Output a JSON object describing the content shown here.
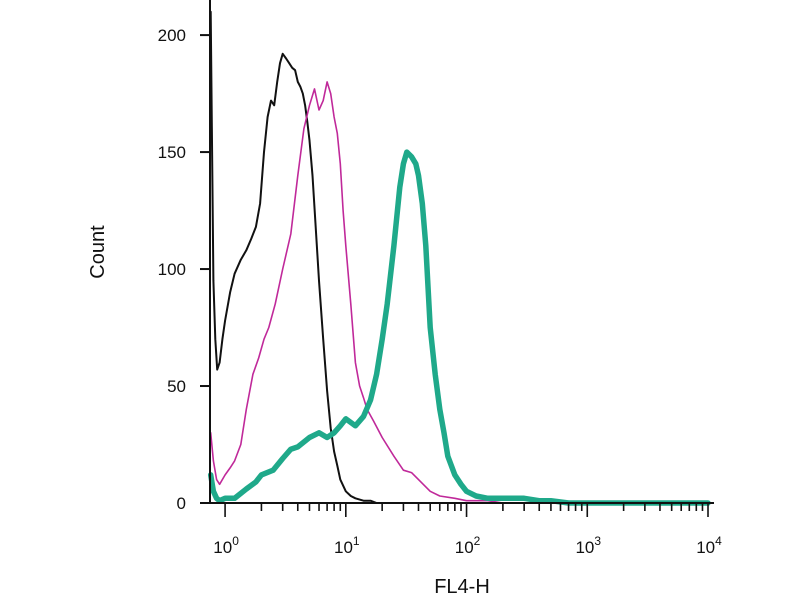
{
  "chart_data": {
    "type": "line",
    "title": "",
    "xlabel": "FL4-H",
    "ylabel": "Count",
    "x_scale": "log",
    "xlim": [
      0.75,
      11000
    ],
    "ylim": [
      0,
      215
    ],
    "grid": false,
    "legend": "none",
    "y_ticks": [
      0,
      50,
      100,
      150,
      200
    ],
    "y_tick_labels": [
      "0",
      "50",
      "100",
      "150",
      "200"
    ],
    "x_ticks": [
      1,
      10,
      100,
      1000,
      10000
    ],
    "x_tick_labels": [
      {
        "base": "10",
        "exp": "0"
      },
      {
        "base": "10",
        "exp": "1"
      },
      {
        "base": "10",
        "exp": "2"
      },
      {
        "base": "10",
        "exp": "3"
      },
      {
        "base": "10",
        "exp": "4"
      }
    ],
    "series": [
      {
        "color": "#111111",
        "stroke_width": 2,
        "x": [
          0.76,
          0.78,
          0.8,
          0.83,
          0.86,
          0.9,
          0.95,
          1.0,
          1.1,
          1.2,
          1.35,
          1.5,
          1.65,
          1.8,
          1.95,
          2.1,
          2.25,
          2.4,
          2.55,
          2.7,
          2.85,
          3.0,
          3.2,
          3.4,
          3.6,
          3.8,
          4.0,
          4.2,
          4.4,
          4.6,
          4.8,
          5.0,
          5.3,
          5.6,
          6.0,
          6.5,
          7.0,
          7.5,
          8.0,
          8.5,
          9.0,
          10.0,
          11.0,
          12.0,
          14.0,
          16.0,
          18.0,
          20.0,
          25.0,
          30.0,
          40.0
        ],
        "y": [
          210,
          150,
          95,
          70,
          57,
          60,
          70,
          78,
          90,
          98,
          104,
          108,
          113,
          118,
          128,
          150,
          165,
          172,
          170,
          180,
          188,
          192,
          190,
          188,
          186,
          185,
          180,
          178,
          175,
          170,
          163,
          155,
          140,
          120,
          95,
          70,
          48,
          32,
          22,
          16,
          10,
          5,
          3,
          2,
          1,
          1,
          0,
          0,
          0,
          0,
          0
        ]
      },
      {
        "color": "#c0299a",
        "stroke_width": 1.6,
        "x": [
          0.76,
          0.8,
          0.85,
          0.9,
          1.0,
          1.1,
          1.2,
          1.35,
          1.5,
          1.7,
          1.9,
          2.1,
          2.3,
          2.6,
          3.0,
          3.5,
          4.0,
          4.5,
          5.0,
          5.5,
          6.0,
          6.5,
          7.0,
          7.5,
          8.0,
          8.5,
          9.0,
          9.5,
          10.0,
          11.0,
          12.0,
          13.0,
          14.0,
          15.0,
          17.0,
          20.0,
          25.0,
          30.0,
          35.0,
          40.0,
          50.0,
          60.0,
          80.0,
          100.0,
          150.0,
          200.0
        ],
        "y": [
          30,
          18,
          10,
          8,
          12,
          15,
          18,
          25,
          40,
          55,
          62,
          70,
          75,
          85,
          100,
          115,
          140,
          160,
          170,
          177,
          168,
          172,
          180,
          175,
          165,
          158,
          145,
          125,
          110,
          85,
          60,
          50,
          45,
          40,
          35,
          28,
          20,
          14,
          13,
          10,
          5,
          3,
          2,
          1,
          1,
          0
        ]
      },
      {
        "color": "#1fa98a",
        "stroke_width": 5.5,
        "x": [
          0.76,
          0.8,
          0.85,
          0.9,
          1.0,
          1.2,
          1.5,
          1.8,
          2.0,
          2.5,
          3.0,
          3.5,
          4.0,
          5.0,
          6.0,
          7.0,
          8.0,
          9.0,
          10.0,
          12.0,
          14.0,
          16.0,
          18.0,
          20.0,
          22.0,
          25.0,
          28.0,
          30.0,
          32.0,
          35.0,
          38.0,
          40.0,
          43.0,
          46.0,
          50.0,
          55.0,
          60.0,
          65.0,
          70.0,
          80.0,
          90.0,
          100.0,
          120.0,
          150.0,
          200.0,
          300.0,
          400.0,
          500.0,
          700.0,
          1000.0,
          2000.0,
          5000.0,
          10000.0
        ],
        "y": [
          12,
          5,
          2,
          1,
          2,
          2,
          6,
          9,
          12,
          14,
          19,
          23,
          24,
          28,
          30,
          28,
          30,
          33,
          36,
          33,
          37,
          44,
          55,
          70,
          85,
          110,
          135,
          145,
          150,
          148,
          145,
          140,
          128,
          110,
          75,
          55,
          40,
          30,
          20,
          12,
          8,
          5,
          3,
          2,
          2,
          2,
          1,
          1,
          0,
          0,
          0,
          0,
          0
        ]
      }
    ]
  }
}
